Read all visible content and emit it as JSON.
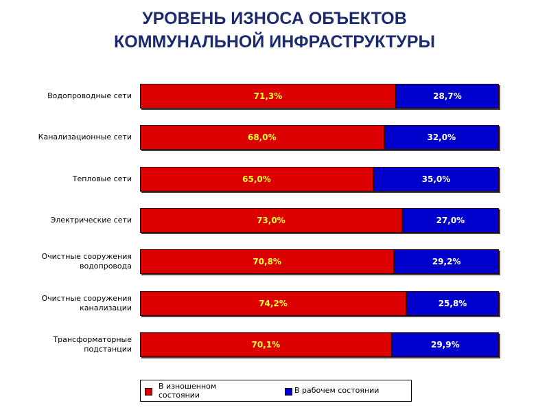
{
  "chart_data": {
    "type": "stacked-bar-horizontal",
    "title": "УРОВЕНЬ ИЗНОСА  ОБЪЕКТОВ КОММУНАЛЬНОЙ ИНФРАСТРУКТУРЫ",
    "categories": [
      "Водопроводные сети",
      "Канализационные сети",
      "Тепловые сети",
      "Электрические сети",
      "Очистные сооружения водопровода",
      "Очистные сооружения канализации",
      "Трансформаторные подстанции"
    ],
    "xlim": [
      0,
      100
    ],
    "series": [
      {
        "name": "В изношенном состоянии",
        "color": "#dd0000",
        "label_color": "#ffff33",
        "values": [
          71.3,
          68.0,
          65.0,
          73.0,
          70.8,
          74.2,
          70.1
        ],
        "value_labels": [
          "71,3%",
          "68,0%",
          "65,0%",
          "73,0%",
          "70,8%",
          "74,2%",
          "70,1%"
        ]
      },
      {
        "name": "В рабочем состоянии",
        "color": "#0000cc",
        "label_color": "#ffffff",
        "values": [
          28.7,
          32.0,
          35.0,
          27.0,
          29.2,
          25.8,
          29.9
        ],
        "value_labels": [
          "28,7%",
          "32,0%",
          "35,0%",
          "27,0%",
          "29,2%",
          "25,8%",
          "29,9%"
        ]
      }
    ]
  }
}
